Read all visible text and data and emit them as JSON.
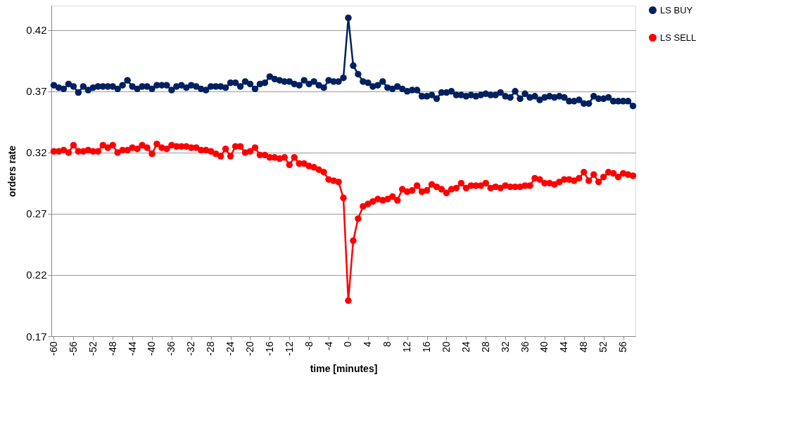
{
  "chart_data": {
    "type": "line",
    "xlabel": "time [minutes]",
    "ylabel": "orders rate",
    "x": [
      -60,
      -59,
      -58,
      -57,
      -56,
      -55,
      -54,
      -53,
      -52,
      -51,
      -50,
      -49,
      -48,
      -47,
      -46,
      -45,
      -44,
      -43,
      -42,
      -41,
      -40,
      -39,
      -38,
      -37,
      -36,
      -35,
      -34,
      -33,
      -32,
      -31,
      -30,
      -29,
      -28,
      -27,
      -26,
      -25,
      -24,
      -23,
      -22,
      -21,
      -20,
      -19,
      -18,
      -17,
      -16,
      -15,
      -14,
      -13,
      -12,
      -11,
      -10,
      -9,
      -8,
      -7,
      -6,
      -5,
      -4,
      -3,
      -2,
      -1,
      0,
      1,
      2,
      3,
      4,
      5,
      6,
      7,
      8,
      9,
      10,
      11,
      12,
      13,
      14,
      15,
      16,
      17,
      18,
      19,
      20,
      21,
      22,
      23,
      24,
      25,
      26,
      27,
      28,
      29,
      30,
      31,
      32,
      33,
      34,
      35,
      36,
      37,
      38,
      39,
      40,
      41,
      42,
      43,
      44,
      45,
      46,
      47,
      48,
      49,
      50,
      51,
      52,
      53,
      54,
      55,
      56,
      57,
      58
    ],
    "series": [
      {
        "name": "LS BUY",
        "color": "#002060",
        "values": [
          0.375,
          0.373,
          0.372,
          0.376,
          0.374,
          0.369,
          0.374,
          0.371,
          0.373,
          0.374,
          0.374,
          0.374,
          0.374,
          0.372,
          0.375,
          0.379,
          0.374,
          0.372,
          0.374,
          0.374,
          0.372,
          0.375,
          0.375,
          0.375,
          0.371,
          0.374,
          0.375,
          0.373,
          0.375,
          0.374,
          0.372,
          0.371,
          0.374,
          0.374,
          0.374,
          0.373,
          0.377,
          0.377,
          0.374,
          0.378,
          0.376,
          0.372,
          0.376,
          0.377,
          0.382,
          0.38,
          0.379,
          0.378,
          0.378,
          0.376,
          0.375,
          0.379,
          0.376,
          0.378,
          0.375,
          0.373,
          0.379,
          0.378,
          0.378,
          0.381,
          0.43,
          0.391,
          0.384,
          0.378,
          0.377,
          0.374,
          0.375,
          0.378,
          0.373,
          0.372,
          0.374,
          0.372,
          0.37,
          0.371,
          0.371,
          0.366,
          0.366,
          0.367,
          0.364,
          0.369,
          0.369,
          0.37,
          0.367,
          0.367,
          0.366,
          0.367,
          0.366,
          0.367,
          0.368,
          0.367,
          0.367,
          0.369,
          0.366,
          0.365,
          0.37,
          0.364,
          0.368,
          0.365,
          0.366,
          0.363,
          0.365,
          0.366,
          0.365,
          0.366,
          0.365,
          0.362,
          0.362,
          0.363,
          0.36,
          0.36,
          0.366,
          0.364,
          0.364,
          0.365,
          0.362,
          0.362,
          0.362,
          0.362,
          0.358
        ]
      },
      {
        "name": "LS SELL",
        "color": "#ff0000",
        "values": [
          0.321,
          0.321,
          0.322,
          0.32,
          0.326,
          0.321,
          0.321,
          0.322,
          0.321,
          0.321,
          0.326,
          0.324,
          0.326,
          0.32,
          0.322,
          0.322,
          0.324,
          0.323,
          0.326,
          0.324,
          0.319,
          0.327,
          0.324,
          0.323,
          0.326,
          0.325,
          0.325,
          0.325,
          0.324,
          0.324,
          0.322,
          0.322,
          0.321,
          0.319,
          0.317,
          0.323,
          0.317,
          0.325,
          0.325,
          0.32,
          0.321,
          0.324,
          0.318,
          0.318,
          0.316,
          0.316,
          0.315,
          0.316,
          0.31,
          0.316,
          0.311,
          0.311,
          0.309,
          0.308,
          0.306,
          0.304,
          0.298,
          0.297,
          0.296,
          0.283,
          0.199,
          0.248,
          0.266,
          0.276,
          0.278,
          0.28,
          0.282,
          0.281,
          0.282,
          0.284,
          0.281,
          0.29,
          0.288,
          0.289,
          0.293,
          0.288,
          0.289,
          0.294,
          0.292,
          0.29,
          0.287,
          0.29,
          0.291,
          0.295,
          0.291,
          0.293,
          0.293,
          0.293,
          0.295,
          0.291,
          0.292,
          0.291,
          0.293,
          0.292,
          0.292,
          0.292,
          0.293,
          0.293,
          0.299,
          0.298,
          0.295,
          0.295,
          0.294,
          0.296,
          0.298,
          0.298,
          0.297,
          0.299,
          0.304,
          0.297,
          0.302,
          0.296,
          0.3,
          0.304,
          0.303,
          0.3,
          0.303,
          0.302,
          0.301
        ]
      }
    ],
    "xlim": [
      -60.5,
      58.5
    ],
    "xticks": [
      -60,
      -56,
      -52,
      -48,
      -44,
      -40,
      -36,
      -32,
      -28,
      -24,
      -20,
      -16,
      -12,
      -8,
      -4,
      0,
      4,
      8,
      12,
      16,
      20,
      24,
      28,
      32,
      36,
      40,
      44,
      48,
      52,
      56
    ],
    "ylim": [
      0.17,
      0.44
    ],
    "yticks": [
      0.17,
      0.22,
      0.27,
      0.32,
      0.37,
      0.42
    ],
    "grid": "y",
    "legend": "right",
    "marker": "circle",
    "line_style": "solid"
  }
}
